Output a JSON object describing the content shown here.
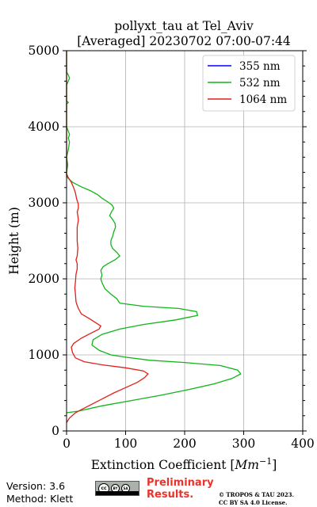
{
  "chart_data": {
    "type": "line",
    "title": "pollyxt_tau at Tel_Aviv",
    "subtitle": "[Averaged] 20230702 07:00-07:44",
    "xlabel": "Extinction Coefficient [",
    "xlabel_math": "Mm",
    "xlabel_sup": "−1",
    "xlabel_end": "]",
    "ylabel": "Height (m)",
    "xlim": [
      0,
      400
    ],
    "ylim": [
      0,
      5000
    ],
    "xticks": [
      0,
      100,
      200,
      300,
      400
    ],
    "yticks": [
      0,
      1000,
      2000,
      3000,
      4000,
      5000
    ],
    "grid": true,
    "legend_position": "top-right",
    "series": [
      {
        "name": "355 nm",
        "color": "#0000ff",
        "points": []
      },
      {
        "name": "532 nm",
        "color": "#11b51a",
        "points": [
          [
            0,
            240
          ],
          [
            20,
            260
          ],
          [
            60,
            330
          ],
          [
            110,
            400
          ],
          [
            160,
            470
          ],
          [
            210,
            550
          ],
          [
            250,
            620
          ],
          [
            280,
            690
          ],
          [
            295,
            750
          ],
          [
            290,
            800
          ],
          [
            260,
            860
          ],
          [
            200,
            900
          ],
          [
            140,
            930
          ],
          [
            100,
            970
          ],
          [
            75,
            1000
          ],
          [
            55,
            1060
          ],
          [
            43,
            1130
          ],
          [
            45,
            1200
          ],
          [
            60,
            1270
          ],
          [
            90,
            1340
          ],
          [
            130,
            1400
          ],
          [
            185,
            1460
          ],
          [
            222,
            1520
          ],
          [
            220,
            1570
          ],
          [
            190,
            1610
          ],
          [
            130,
            1640
          ],
          [
            90,
            1680
          ],
          [
            85,
            1740
          ],
          [
            75,
            1800
          ],
          [
            65,
            1870
          ],
          [
            60,
            1950
          ],
          [
            58,
            2000
          ],
          [
            60,
            2050
          ],
          [
            58,
            2110
          ],
          [
            62,
            2160
          ],
          [
            70,
            2200
          ],
          [
            82,
            2250
          ],
          [
            90,
            2300
          ],
          [
            85,
            2350
          ],
          [
            78,
            2400
          ],
          [
            75,
            2450
          ],
          [
            75,
            2500
          ],
          [
            78,
            2560
          ],
          [
            80,
            2620
          ],
          [
            83,
            2680
          ],
          [
            82,
            2730
          ],
          [
            78,
            2780
          ],
          [
            73,
            2830
          ],
          [
            76,
            2880
          ],
          [
            80,
            2930
          ],
          [
            77,
            2970
          ],
          [
            70,
            3010
          ],
          [
            60,
            3060
          ],
          [
            52,
            3110
          ],
          [
            40,
            3160
          ],
          [
            25,
            3210
          ],
          [
            10,
            3270
          ],
          [
            3,
            3320
          ],
          [
            0,
            3350
          ],
          [
            0,
            3400
          ],
          [
            2,
            3500
          ],
          [
            0,
            3600
          ],
          [
            3,
            3700
          ],
          [
            5,
            3800
          ],
          [
            3,
            3850
          ],
          [
            5,
            3900
          ],
          [
            2,
            3960
          ],
          [
            0,
            4000
          ],
          [
            0,
            4300
          ],
          [
            3,
            4320
          ],
          [
            0,
            4340
          ],
          [
            0,
            4550
          ],
          [
            3,
            4600
          ],
          [
            5,
            4640
          ],
          [
            3,
            4680
          ],
          [
            0,
            4720
          ],
          [
            0,
            5000
          ]
        ]
      },
      {
        "name": "1064 nm",
        "color": "#e0201a",
        "points": [
          [
            0,
            110
          ],
          [
            5,
            170
          ],
          [
            15,
            240
          ],
          [
            30,
            300
          ],
          [
            45,
            360
          ],
          [
            60,
            420
          ],
          [
            80,
            500
          ],
          [
            100,
            570
          ],
          [
            120,
            640
          ],
          [
            132,
            700
          ],
          [
            138,
            750
          ],
          [
            130,
            790
          ],
          [
            100,
            830
          ],
          [
            60,
            870
          ],
          [
            30,
            910
          ],
          [
            15,
            960
          ],
          [
            10,
            1030
          ],
          [
            8,
            1100
          ],
          [
            12,
            1150
          ],
          [
            25,
            1220
          ],
          [
            40,
            1280
          ],
          [
            55,
            1340
          ],
          [
            58,
            1380
          ],
          [
            50,
            1420
          ],
          [
            38,
            1480
          ],
          [
            25,
            1540
          ],
          [
            20,
            1610
          ],
          [
            18,
            1650
          ],
          [
            16,
            1700
          ],
          [
            15,
            1800
          ],
          [
            14,
            1880
          ],
          [
            15,
            1960
          ],
          [
            16,
            2060
          ],
          [
            18,
            2130
          ],
          [
            18,
            2200
          ],
          [
            16,
            2250
          ],
          [
            18,
            2300
          ],
          [
            19,
            2400
          ],
          [
            18,
            2500
          ],
          [
            18,
            2600
          ],
          [
            18,
            2680
          ],
          [
            20,
            2770
          ],
          [
            19,
            2830
          ],
          [
            18,
            2880
          ],
          [
            20,
            2930
          ],
          [
            20,
            2980
          ],
          [
            17,
            3050
          ],
          [
            15,
            3130
          ],
          [
            12,
            3200
          ],
          [
            8,
            3270
          ],
          [
            3,
            3330
          ],
          [
            0,
            3380
          ],
          [
            0,
            5000
          ]
        ]
      }
    ]
  },
  "footer": {
    "version": "Version: 3.6",
    "method": "Method: Klett",
    "cc_by": "BY",
    "cc_sa": "SA",
    "preliminary_line1": "Preliminary",
    "preliminary_line2": "Results.",
    "license_line1": "© TROPOS & TAU 2023.",
    "license_line2": "CC BY SA 4.0 License."
  },
  "colors": {
    "grid": "#b0b0b0",
    "preliminary": "#e8342b"
  }
}
